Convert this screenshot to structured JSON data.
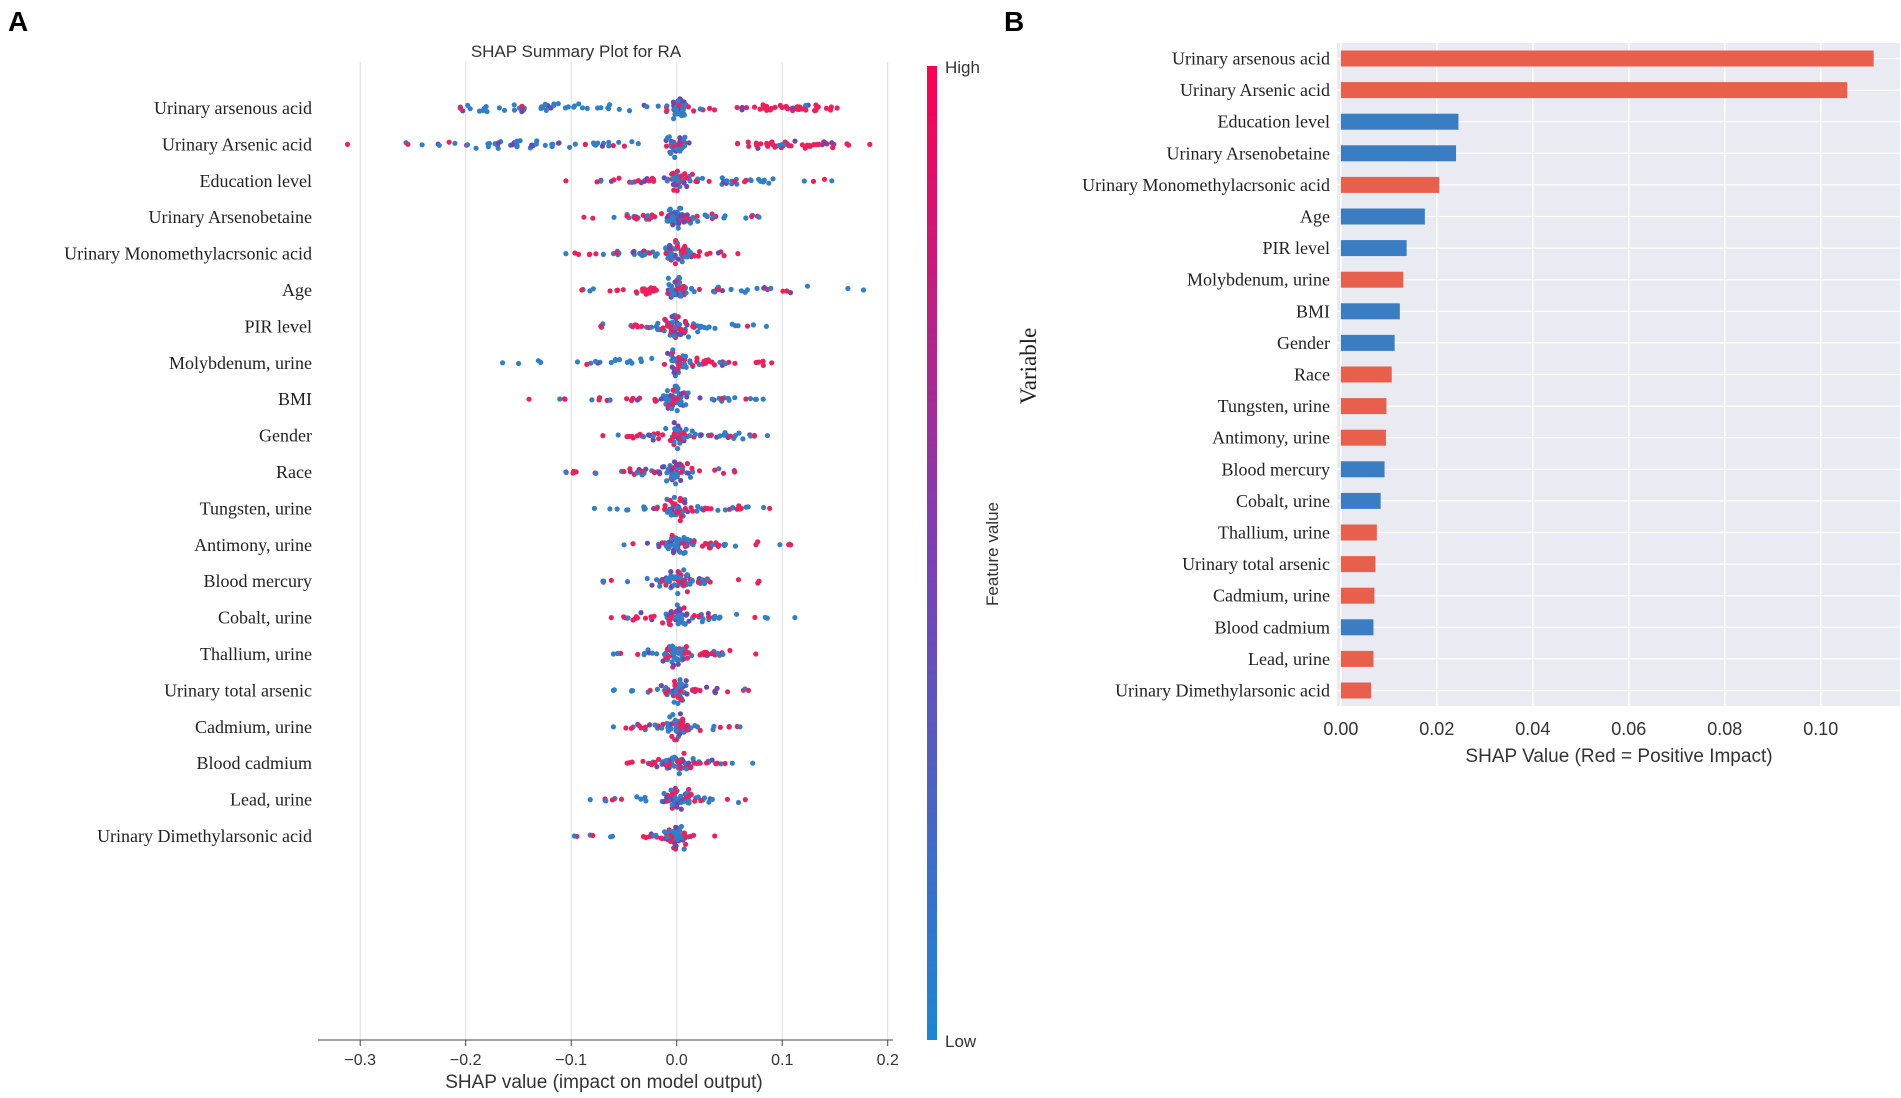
{
  "panel_a": {
    "label": "A",
    "colorbar": {
      "high_label": "High",
      "low_label": "Low",
      "title": "Feature value",
      "high_color": "#ff0051",
      "low_color": "#008bfb"
    },
    "chart_data": {
      "type": "scatter",
      "subtype": "beeswarm",
      "title": "SHAP Summary Plot for RA",
      "xlabel": "SHAP value (impact on model output)",
      "ylabel": "",
      "xlim": [
        -0.34,
        0.205
      ],
      "xticks": [
        -0.3,
        -0.2,
        -0.1,
        0.0,
        0.1,
        0.2
      ],
      "xtick_labels": [
        "−0.3",
        "−0.2",
        "−0.1",
        "0.0",
        "0.1",
        "0.2"
      ],
      "grid": true,
      "features": [
        {
          "name": "Urinary arsenous acid",
          "min": -0.205,
          "max": 0.152,
          "lows": [
            [
              -0.14,
              0.038,
              40
            ]
          ],
          "highs": [
            [
              0.105,
              0.022,
              40
            ],
            [
              -0.02,
              0.03,
              6
            ]
          ]
        },
        {
          "name": "Urinary Arsenic acid",
          "min": -0.312,
          "max": 0.183,
          "lows": [
            [
              -0.13,
              0.05,
              44
            ]
          ],
          "highs": [
            [
              0.11,
              0.028,
              44
            ],
            [
              -0.22,
              0.02,
              3
            ]
          ]
        },
        {
          "name": "Education level",
          "min": -0.105,
          "max": 0.147,
          "lows": [
            [
              0.05,
              0.03,
              18
            ]
          ],
          "highs": [
            [
              -0.04,
              0.02,
              18
            ]
          ]
        },
        {
          "name": "Urinary Arsenobetaine",
          "min": -0.088,
          "max": 0.078,
          "lows": [
            [
              0.01,
              0.032,
              20
            ]
          ],
          "highs": [
            [
              -0.02,
              0.025,
              10
            ]
          ]
        },
        {
          "name": "Urinary Monomethylacrsonic acid",
          "min": -0.105,
          "max": 0.058,
          "lows": [
            [
              -0.03,
              0.025,
              20
            ]
          ],
          "highs": [
            [
              0.018,
              0.012,
              14
            ]
          ]
        },
        {
          "name": "Age",
          "min": -0.09,
          "max": 0.177,
          "lows": [
            [
              0.05,
              0.045,
              20
            ]
          ],
          "highs": [
            [
              -0.03,
              0.02,
              18
            ]
          ]
        },
        {
          "name": "PIR level",
          "min": -0.072,
          "max": 0.085,
          "lows": [
            [
              0.02,
              0.025,
              18
            ]
          ],
          "highs": [
            [
              -0.01,
              0.018,
              14
            ]
          ]
        },
        {
          "name": "Molybdenum, urine",
          "min": -0.165,
          "max": 0.09,
          "lows": [
            [
              -0.04,
              0.04,
              18
            ]
          ],
          "highs": [
            [
              0.03,
              0.025,
              14
            ]
          ]
        },
        {
          "name": "BMI",
          "min": -0.14,
          "max": 0.082,
          "lows": [
            [
              0.02,
              0.025,
              16
            ]
          ],
          "highs": [
            [
              -0.03,
              0.03,
              12
            ]
          ]
        },
        {
          "name": "Gender",
          "min": -0.07,
          "max": 0.086,
          "lows": [
            [
              0.03,
              0.022,
              18
            ]
          ],
          "highs": [
            [
              -0.03,
              0.018,
              16
            ]
          ]
        },
        {
          "name": "Race",
          "min": -0.105,
          "max": 0.055,
          "lows": [
            [
              -0.01,
              0.03,
              16
            ]
          ],
          "highs": [
            [
              0.01,
              0.025,
              12
            ]
          ]
        },
        {
          "name": "Tungsten, urine",
          "min": -0.078,
          "max": 0.088,
          "lows": [
            [
              0.01,
              0.025,
              16
            ]
          ],
          "highs": [
            [
              0.03,
              0.025,
              10
            ]
          ]
        },
        {
          "name": "Antimony, urine",
          "min": -0.05,
          "max": 0.108,
          "lows": [
            [
              0.0,
              0.02,
              16
            ]
          ],
          "highs": [
            [
              0.03,
              0.025,
              10
            ]
          ]
        },
        {
          "name": "Blood mercury",
          "min": -0.07,
          "max": 0.078,
          "lows": [
            [
              0.0,
              0.02,
              16
            ]
          ],
          "highs": [
            [
              0.01,
              0.02,
              8
            ]
          ]
        },
        {
          "name": "Cobalt, urine",
          "min": -0.062,
          "max": 0.112,
          "lows": [
            [
              0.02,
              0.025,
              16
            ]
          ],
          "highs": [
            [
              -0.02,
              0.02,
              10
            ]
          ]
        },
        {
          "name": "Thallium, urine",
          "min": -0.06,
          "max": 0.075,
          "lows": [
            [
              0.0,
              0.02,
              14
            ]
          ],
          "highs": [
            [
              0.02,
              0.02,
              10
            ]
          ]
        },
        {
          "name": "Urinary total arsenic",
          "min": -0.06,
          "max": 0.068,
          "lows": [
            [
              0.0,
              0.018,
              14
            ]
          ],
          "highs": [
            [
              0.02,
              0.02,
              8
            ]
          ]
        },
        {
          "name": "Cadmium, urine",
          "min": -0.06,
          "max": 0.06,
          "lows": [
            [
              0.0,
              0.02,
              14
            ]
          ],
          "highs": [
            [
              0.0,
              0.015,
              6
            ]
          ]
        },
        {
          "name": "Blood cadmium",
          "min": -0.047,
          "max": 0.072,
          "lows": [
            [
              0.01,
              0.02,
              14
            ]
          ],
          "highs": [
            [
              -0.005,
              0.015,
              8
            ]
          ]
        },
        {
          "name": "Lead, urine",
          "min": -0.082,
          "max": 0.065,
          "lows": [
            [
              0.0,
              0.022,
              14
            ]
          ],
          "highs": [
            [
              0.01,
              0.02,
              6
            ]
          ]
        },
        {
          "name": "Urinary Dimethylarsonic acid",
          "min": -0.097,
          "max": 0.036,
          "lows": [
            [
              0.0,
              0.015,
              12
            ]
          ],
          "highs": [
            [
              0.01,
              0.012,
              8
            ]
          ]
        }
      ]
    }
  },
  "panel_b": {
    "label": "B",
    "chart_data": {
      "type": "bar",
      "orientation": "horizontal",
      "title": "",
      "xlabel": "SHAP Value (Red = Positive Impact)",
      "ylabel": "Variable",
      "xlim": [
        -0.0008,
        0.1165
      ],
      "xticks": [
        0.0,
        0.02,
        0.04,
        0.06,
        0.08,
        0.1
      ],
      "xtick_labels": [
        "0.00",
        "0.02",
        "0.04",
        "0.06",
        "0.08",
        "0.10"
      ],
      "grid": true,
      "positive_color": "#e8604c",
      "negative_color": "#3a7dc3",
      "categories": [
        "Urinary arsenous acid",
        "Urinary Arsenic acid",
        "Education level",
        "Urinary Arsenobetaine",
        "Urinary Monomethylacrsonic acid",
        "Age",
        "PIR level",
        "Molybdenum, urine",
        "BMI",
        "Gender",
        "Race",
        "Tungsten, urine",
        "Antimony, urine",
        "Blood mercury",
        "Cobalt, urine",
        "Thallium, urine",
        "Urinary total arsenic",
        "Cadmium, urine",
        "Blood cadmium",
        "Lead, urine",
        "Urinary Dimethylarsonic acid"
      ],
      "values": [
        0.111,
        0.1055,
        0.0245,
        0.024,
        0.0205,
        0.0175,
        0.0137,
        0.013,
        0.0123,
        0.0112,
        0.0106,
        0.0095,
        0.0094,
        0.0091,
        0.0083,
        0.0075,
        0.0072,
        0.007,
        0.0068,
        0.0068,
        0.0063
      ],
      "positive_impact": [
        true,
        true,
        false,
        false,
        true,
        false,
        false,
        true,
        false,
        false,
        true,
        true,
        true,
        false,
        false,
        true,
        true,
        true,
        false,
        true,
        true
      ]
    }
  }
}
